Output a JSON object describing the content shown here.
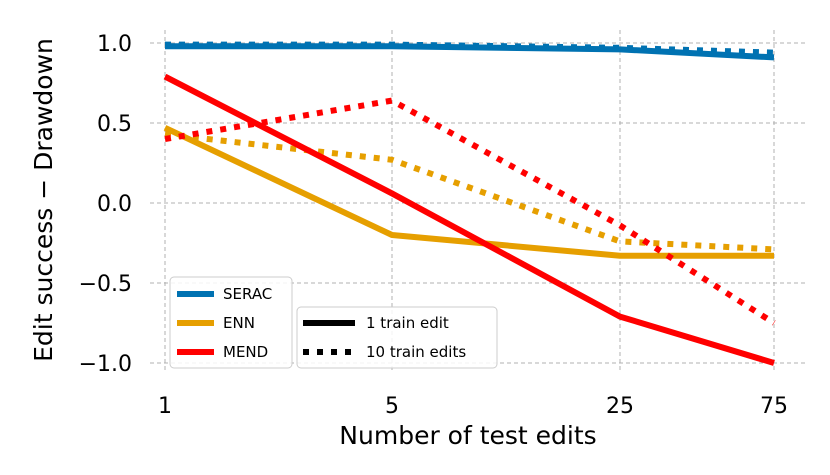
{
  "chart_data": {
    "type": "line",
    "title": "",
    "xlabel": "Number of test edits",
    "ylabel": "Edit success − Drawdown",
    "categories": [
      "1",
      "5",
      "25",
      "75"
    ],
    "yticks": [
      "−1.0",
      "−0.5",
      "0.0",
      "0.5",
      "1.0"
    ],
    "ylim": [
      -1.0,
      1.0
    ],
    "grid": true,
    "series": [
      {
        "name": "SERAC",
        "train": "1 train edit",
        "color": "#0072b2",
        "style": "solid",
        "values": [
          0.98,
          0.98,
          0.96,
          0.91
        ]
      },
      {
        "name": "SERAC",
        "train": "10 train edits",
        "color": "#0072b2",
        "style": "dotted",
        "values": [
          0.99,
          0.99,
          0.97,
          0.94
        ]
      },
      {
        "name": "ENN",
        "train": "1 train edit",
        "color": "#e69f00",
        "style": "solid",
        "values": [
          0.47,
          -0.2,
          -0.33,
          -0.33
        ]
      },
      {
        "name": "ENN",
        "train": "10 train edits",
        "color": "#e69f00",
        "style": "dotted",
        "values": [
          0.43,
          0.27,
          -0.24,
          -0.29
        ]
      },
      {
        "name": "MEND",
        "train": "1 train edit",
        "color": "#ff0000",
        "style": "solid",
        "values": [
          0.79,
          0.06,
          -0.71,
          -1.0
        ]
      },
      {
        "name": "MEND",
        "train": "10 train edits",
        "color": "#ff0000",
        "style": "dotted",
        "values": [
          0.4,
          0.64,
          -0.14,
          -0.75
        ]
      }
    ],
    "legend_methods": [
      {
        "label": "SERAC",
        "color": "#0072b2"
      },
      {
        "label": "ENN",
        "color": "#e69f00"
      },
      {
        "label": "MEND",
        "color": "#ff0000"
      }
    ],
    "legend_styles": [
      {
        "label": "1 train edit",
        "style": "solid"
      },
      {
        "label": "10 train edits",
        "style": "dotted"
      }
    ],
    "legend_placement": "lower-left"
  }
}
